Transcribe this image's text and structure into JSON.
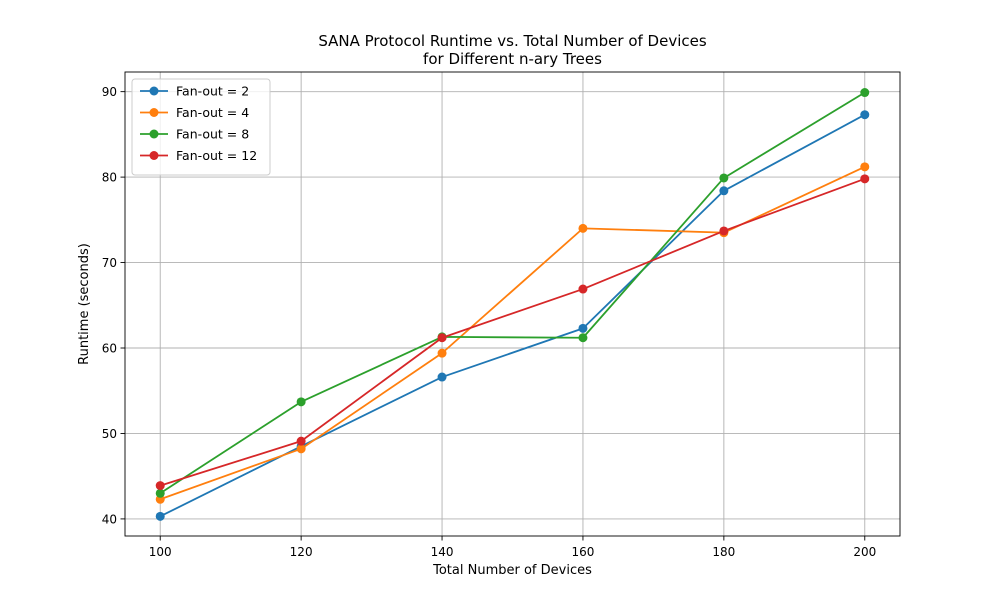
{
  "chart_data": {
    "type": "line",
    "title": [
      "SANA Protocol Runtime vs. Total Number of Devices",
      "for Different n-ary Trees"
    ],
    "xlabel": "Total Number of Devices",
    "ylabel": "Runtime (seconds)",
    "x": [
      100,
      120,
      140,
      160,
      180,
      200
    ],
    "xlim": [
      95,
      205
    ],
    "ylim": [
      38,
      92.3
    ],
    "xticks": [
      100,
      120,
      140,
      160,
      180,
      200
    ],
    "yticks": [
      40,
      50,
      60,
      70,
      80,
      90
    ],
    "grid": true,
    "legend_position": "top-left",
    "marker": "circle",
    "series": [
      {
        "name": "Fan-out = 2",
        "color": "#1f77b4",
        "values": [
          40.3,
          48.5,
          56.6,
          62.3,
          78.4,
          87.3
        ]
      },
      {
        "name": "Fan-out = 4",
        "color": "#ff7f0e",
        "values": [
          42.3,
          48.2,
          59.4,
          74.0,
          73.5,
          81.2
        ]
      },
      {
        "name": "Fan-out = 8",
        "color": "#2ca02c",
        "values": [
          43.0,
          53.7,
          61.3,
          61.2,
          79.9,
          89.9
        ]
      },
      {
        "name": "Fan-out = 12",
        "color": "#d62728",
        "values": [
          43.9,
          49.1,
          61.2,
          66.9,
          73.7,
          79.8
        ]
      }
    ]
  }
}
